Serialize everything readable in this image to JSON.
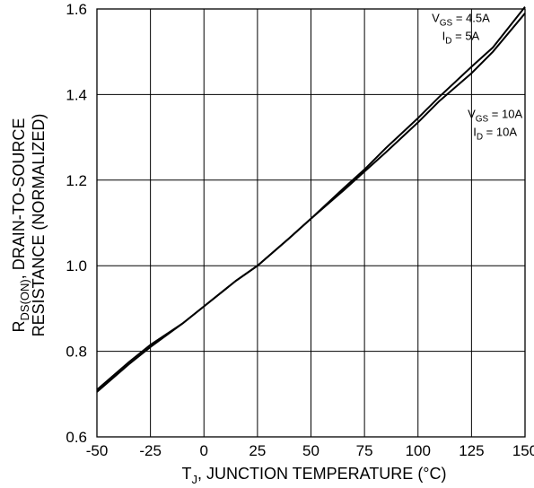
{
  "chart_data": {
    "type": "line",
    "xlabel": {
      "prefix": "T",
      "sub": "J",
      "suffix": ", JUNCTION TEMPERATURE (°C)"
    },
    "ylabel": {
      "line1_prefix": "R",
      "line1_sub": "DS(ON)",
      "line1_suffix": ", DRAIN-TO-SOURCE",
      "line2": "RESISTANCE (NORMALIZED)"
    },
    "xlim": [
      -50,
      150
    ],
    "ylim": [
      0.6,
      1.6
    ],
    "x_ticks": [
      -50,
      -25,
      0,
      25,
      50,
      75,
      100,
      125,
      150
    ],
    "x_tick_labels": [
      "-50",
      "-25",
      "0",
      "25",
      "50",
      "75",
      "100",
      "125",
      "150"
    ],
    "y_ticks": [
      0.6,
      0.8,
      1.0,
      1.2,
      1.4,
      1.6
    ],
    "y_tick_labels": [
      "0.6",
      "0.8",
      "1.0",
      "1.2",
      "1.4",
      "1.6"
    ],
    "grid": true,
    "series": [
      {
        "x": [
          -50,
          -35,
          -25,
          -10,
          0,
          15,
          25,
          40,
          50,
          65,
          75,
          85,
          100,
          110,
          125,
          135,
          150
        ],
        "y": [
          0.71,
          0.775,
          0.815,
          0.865,
          0.905,
          0.965,
          1.0,
          1.065,
          1.11,
          1.18,
          1.225,
          1.275,
          1.345,
          1.395,
          1.465,
          1.51,
          1.605
        ]
      },
      {
        "x": [
          -50,
          -35,
          -25,
          -10,
          0,
          15,
          25,
          40,
          50,
          65,
          75,
          85,
          100,
          110,
          125,
          135,
          150
        ],
        "y": [
          0.705,
          0.77,
          0.81,
          0.865,
          0.905,
          0.965,
          1.0,
          1.065,
          1.11,
          1.175,
          1.22,
          1.265,
          1.335,
          1.385,
          1.45,
          1.5,
          1.59
        ]
      }
    ],
    "annotations": [
      {
        "l1_prefix": "V",
        "l1_sub": "GS",
        "l1_suffix": " = 4.5A",
        "l2_prefix": "I",
        "l2_sub": "D",
        "l2_suffix": " = 5A",
        "at": [
          120,
          1.57
        ]
      },
      {
        "l1_prefix": "V",
        "l1_sub": "GS",
        "l1_suffix": " = 10A",
        "l2_prefix": "I",
        "l2_sub": "D",
        "l2_suffix": " = 10A",
        "at": [
          136,
          1.345
        ]
      }
    ]
  }
}
